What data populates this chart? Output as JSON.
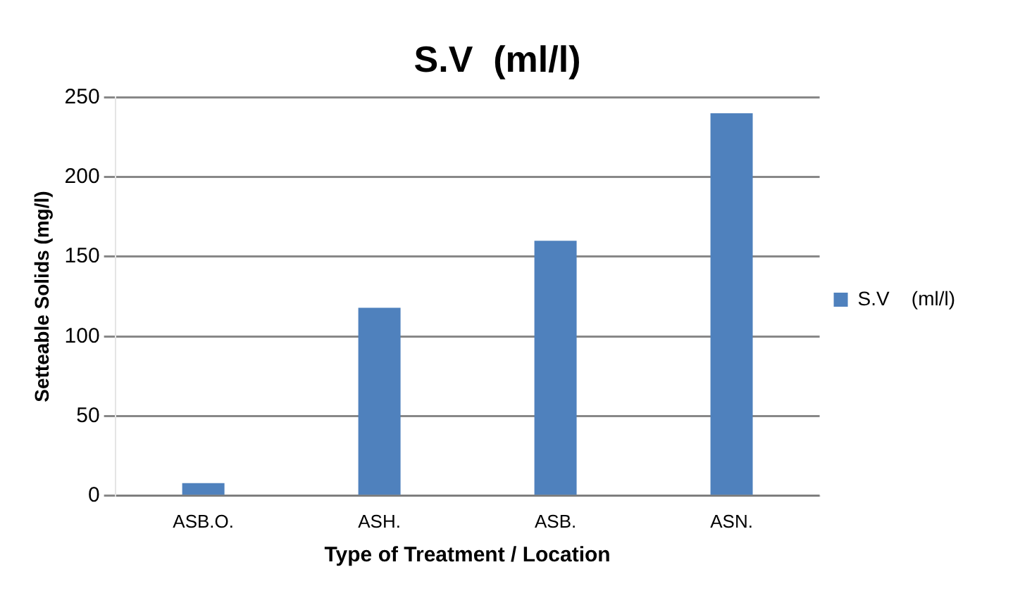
{
  "chart_data": {
    "type": "bar",
    "title": "S.V  (ml/l)",
    "xlabel": "Type of Treatment / Location",
    "ylabel": "Setteable Solids (mg/l)",
    "categories": [
      "ASB.O.",
      "ASH.",
      "ASB.",
      "ASN."
    ],
    "series": [
      {
        "name": "S.V    (ml/l)",
        "color": "#4f81bd",
        "values": [
          8,
          118,
          160,
          240
        ]
      }
    ],
    "ylim": [
      0,
      250
    ],
    "yticks": [
      0,
      50,
      100,
      150,
      200,
      250
    ],
    "grid": "y",
    "legend": "right"
  }
}
